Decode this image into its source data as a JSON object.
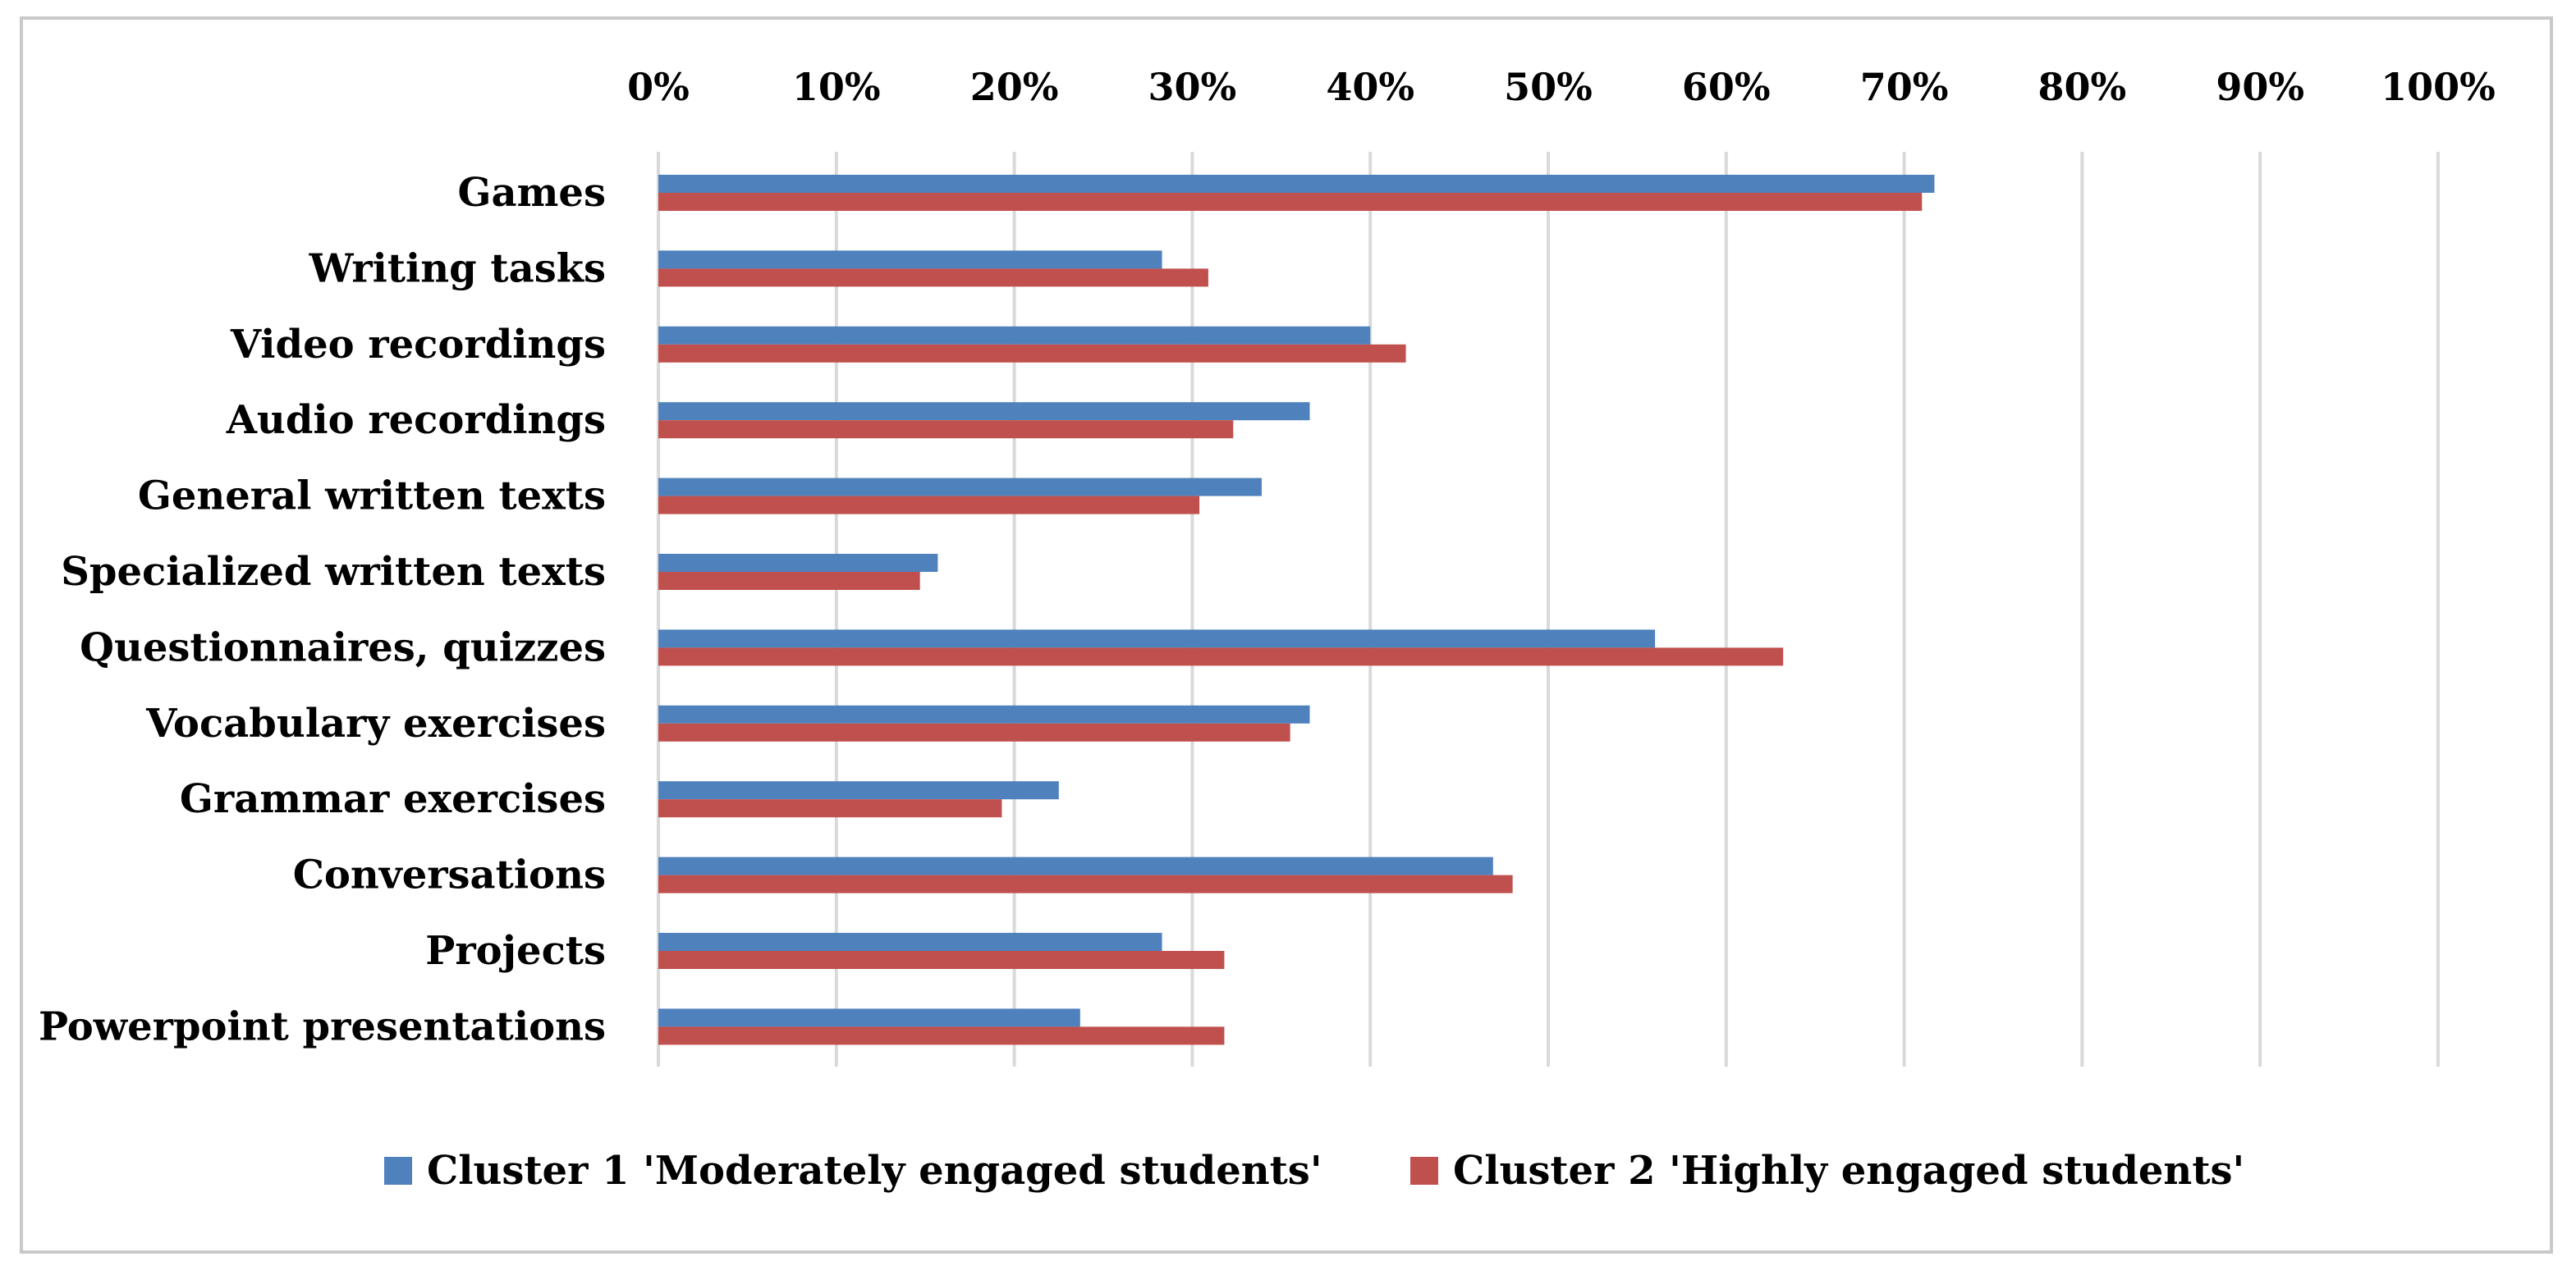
{
  "chart_data": {
    "type": "bar",
    "orientation": "horizontal",
    "title": "",
    "xlabel": "",
    "ylabel": "",
    "xlim": [
      0,
      100
    ],
    "x_axis_position": "top",
    "grid": true,
    "ticks": [
      "0%",
      "10%",
      "20%",
      "30%",
      "40%",
      "50%",
      "60%",
      "70%",
      "80%",
      "90%",
      "100%"
    ],
    "categories": [
      "Games",
      "Writing tasks",
      "Video recordings",
      "Audio recordings",
      "General written texts",
      "Specialized written texts",
      "Questionnaires, quizzes",
      "Vocabulary exercises",
      "Grammar exercises",
      "Conversations",
      "Projects",
      "Powerpoint presentations"
    ],
    "series": [
      {
        "name": "Cluster 1 'Moderately engaged students'",
        "color": "#4f81bd",
        "values": [
          71.7,
          28.3,
          40.0,
          36.6,
          33.9,
          15.7,
          56.0,
          36.6,
          22.5,
          46.9,
          28.3,
          23.7
        ]
      },
      {
        "name": "Cluster 2 'Highly engaged students'",
        "color": "#c0504d",
        "values": [
          71.0,
          30.9,
          42.0,
          32.3,
          30.4,
          14.7,
          63.2,
          35.5,
          19.3,
          48.0,
          31.8,
          31.8
        ]
      }
    ],
    "legend_position": "bottom"
  }
}
